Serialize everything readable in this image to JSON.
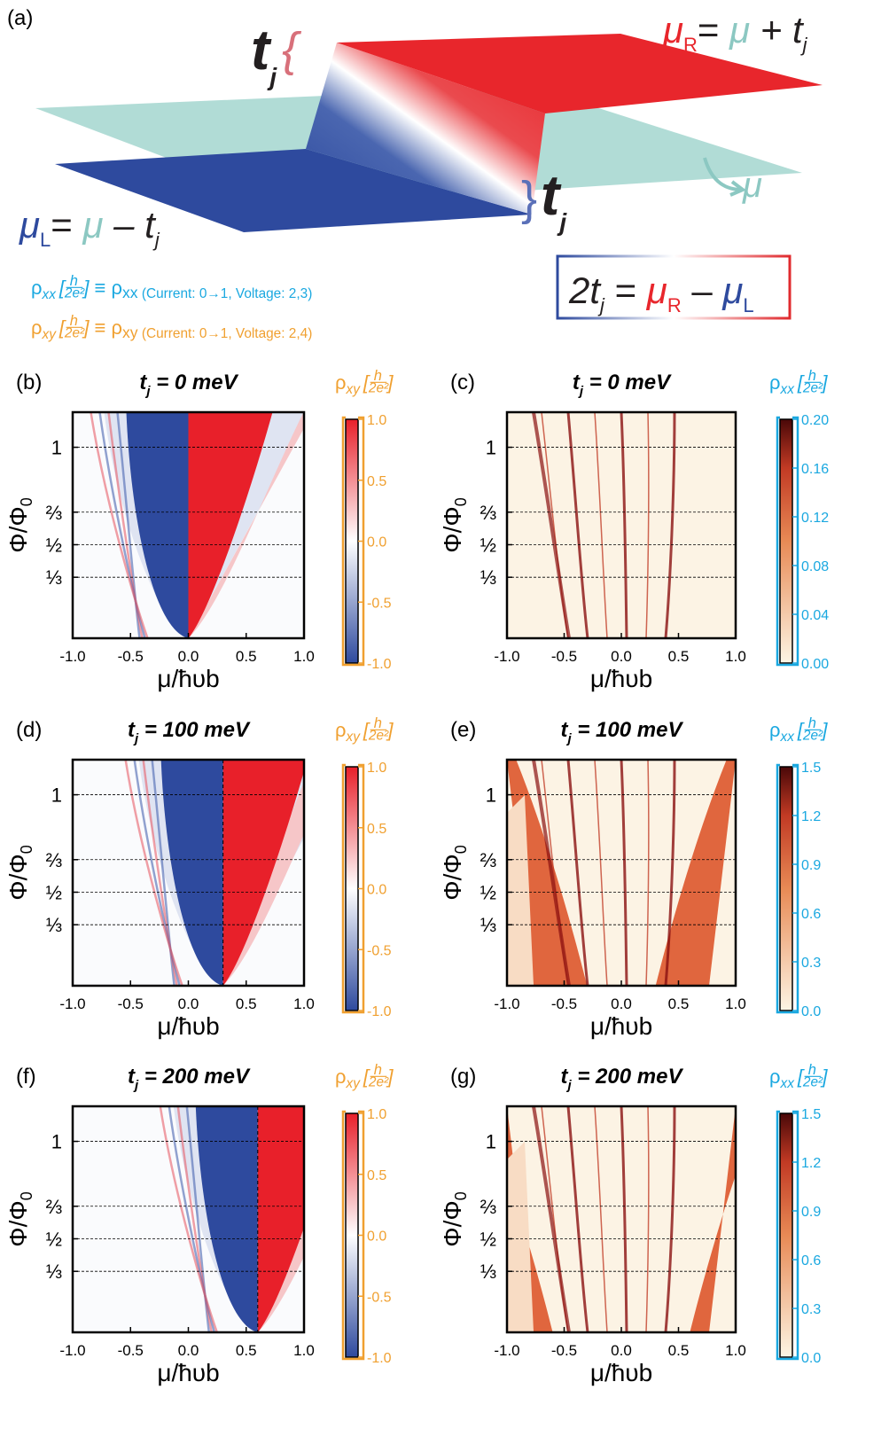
{
  "panel_a": {
    "label": "(a)",
    "tj_top": {
      "t": "t",
      "sub": "j",
      "brace": "{"
    },
    "mu_R_eq": [
      "μ",
      "R",
      "= ",
      "μ",
      " + t",
      "j"
    ],
    "mu_L_eq": [
      "μ",
      "L",
      "= ",
      "μ",
      " – t",
      "j"
    ],
    "tj_bottom": {
      "brace": "}",
      "t": "t",
      "sub": "j"
    },
    "mu_arrow_label": "μ",
    "box_eq": [
      "2t",
      "j",
      " = ",
      "μ",
      "R",
      " – ",
      "μ",
      "L"
    ],
    "rho_xx_def": {
      "rho": "ρ",
      "sub": "xx",
      "open": "[",
      "num": "h",
      "den": "2e²",
      "close": "]",
      "rest": "≡ ρ",
      "rest_sub": "xx",
      "note": " (Current: 0→1, Voltage: 2,3)"
    },
    "rho_xy_def": {
      "rho": "ρ",
      "sub": "xy",
      "open": "[",
      "num": "h",
      "den": "2e²",
      "close": "]",
      "rest": "≡ ρ",
      "rest_sub": "xy",
      "note": " (Current: 0→1, Voltage: 2,4)"
    }
  },
  "panels": [
    {
      "label": "(b)",
      "kind": "xy",
      "title": [
        "t",
        "j",
        " = 0 meV"
      ],
      "xlabel": "μ/ħυb",
      "ylabel": [
        "Φ/Φ",
        "0"
      ],
      "xlim": [
        -1,
        1
      ],
      "ylim": [
        0.02,
        1.18
      ],
      "xticks": [
        {
          "value": -1,
          "label": "-1.0"
        },
        {
          "value": -0.5,
          "label": "-0.5"
        },
        {
          "value": 0,
          "label": "0.0"
        },
        {
          "value": 0.5,
          "label": "0.5"
        },
        {
          "value": 1,
          "label": "1.0"
        }
      ],
      "yticks": [
        1,
        {
          "value": 0.667,
          "label": "⅔"
        },
        {
          "value": 0.5,
          "label": "½"
        },
        {
          "value": 0.333,
          "label": "⅓"
        }
      ],
      "colorbar": {
        "label": {
          "rho": "ρ",
          "sub": "xy",
          "open": "[",
          "num": "h",
          "den": "2e²",
          "close": "]"
        },
        "lim": [
          -1,
          1
        ],
        "ticks": [
          {
            "value": 1,
            "label": "1.0"
          },
          {
            "value": 0.5,
            "label": "0.5"
          },
          {
            "value": 0,
            "label": "0.0"
          },
          {
            "value": -0.5,
            "label": "-0.5"
          },
          {
            "value": -1,
            "label": "-1.0"
          }
        ]
      }
    },
    {
      "label": "(c)",
      "kind": "xx",
      "title": [
        "t",
        "j",
        " = 0 meV"
      ],
      "xlabel": "μ/ħυb",
      "ylabel": [
        "Φ/Φ",
        "0"
      ],
      "xlim": [
        -1,
        1
      ],
      "ylim": [
        0.02,
        1.18
      ],
      "xticks": [
        {
          "value": -1,
          "label": "-1.0"
        },
        {
          "value": -0.5,
          "label": "-0.5"
        },
        {
          "value": 0,
          "label": "0.0"
        },
        {
          "value": 0.5,
          "label": "0.5"
        },
        {
          "value": 1,
          "label": "1.0"
        }
      ],
      "yticks": [
        1,
        {
          "value": 0.667,
          "label": "⅔"
        },
        {
          "value": 0.5,
          "label": "½"
        },
        {
          "value": 0.333,
          "label": "⅓"
        }
      ],
      "colorbar": {
        "label": {
          "rho": "ρ",
          "sub": "xx",
          "open": "[",
          "num": "h",
          "den": "2e²",
          "close": "]"
        },
        "lim": [
          0,
          0.2
        ],
        "ticks": [
          {
            "value": 0.2,
            "label": "0.20"
          },
          0.16,
          0.12,
          0.08,
          0.04,
          {
            "value": 0,
            "label": "0.00"
          }
        ]
      }
    },
    {
      "label": "(d)",
      "kind": "xy",
      "title": [
        "t",
        "j",
        " = 100 meV"
      ],
      "xlabel": "μ/ħυb",
      "ylabel": [
        "Φ/Φ",
        "0"
      ],
      "xlim": [
        -1,
        1
      ],
      "ylim": [
        0.02,
        1.18
      ],
      "xticks": [
        {
          "value": -1,
          "label": "-1.0"
        },
        {
          "value": -0.5,
          "label": "-0.5"
        },
        {
          "value": 0,
          "label": "0.0"
        },
        {
          "value": 0.5,
          "label": "0.5"
        },
        {
          "value": 1,
          "label": "1.0"
        }
      ],
      "yticks": [
        1,
        {
          "value": 0.667,
          "label": "⅔"
        },
        {
          "value": 0.5,
          "label": "½"
        },
        {
          "value": 0.333,
          "label": "⅓"
        }
      ],
      "colorbar": {
        "label": {
          "rho": "ρ",
          "sub": "xy",
          "open": "[",
          "num": "h",
          "den": "2e²",
          "close": "]"
        },
        "lim": [
          -1,
          1
        ],
        "ticks": [
          {
            "value": 1,
            "label": "1.0"
          },
          {
            "value": 0.5,
            "label": "0.5"
          },
          {
            "value": 0,
            "label": "0.0"
          },
          {
            "value": -0.5,
            "label": "-0.5"
          },
          {
            "value": -1,
            "label": "-1.0"
          }
        ]
      }
    },
    {
      "label": "(e)",
      "kind": "xx",
      "title": [
        "t",
        "j",
        " = 100 meV"
      ],
      "xlabel": "μ/ħυb",
      "ylabel": [
        "Φ/Φ",
        "0"
      ],
      "xlim": [
        -1,
        1
      ],
      "ylim": [
        0.02,
        1.18
      ],
      "xticks": [
        {
          "value": -1,
          "label": "-1.0"
        },
        {
          "value": -0.5,
          "label": "-0.5"
        },
        {
          "value": 0,
          "label": "0.0"
        },
        {
          "value": 0.5,
          "label": "0.5"
        },
        {
          "value": 1,
          "label": "1.0"
        }
      ],
      "yticks": [
        1,
        {
          "value": 0.667,
          "label": "⅔"
        },
        {
          "value": 0.5,
          "label": "½"
        },
        {
          "value": 0.333,
          "label": "⅓"
        }
      ],
      "colorbar": {
        "label": {
          "rho": "ρ",
          "sub": "xx",
          "open": "[",
          "num": "h",
          "den": "2e²",
          "close": "]"
        },
        "lim": [
          0,
          1.5
        ],
        "ticks": [
          1.5,
          1.2,
          0.9,
          0.6,
          0.3,
          {
            "value": 0,
            "label": "0.0"
          }
        ]
      }
    },
    {
      "label": "(f)",
      "kind": "xy",
      "title": [
        "t",
        "j",
        " = 200 meV"
      ],
      "xlabel": "μ/ħυb",
      "ylabel": [
        "Φ/Φ",
        "0"
      ],
      "xlim": [
        -1,
        1
      ],
      "ylim": [
        0.02,
        1.18
      ],
      "xticks": [
        {
          "value": -1,
          "label": "-1.0"
        },
        {
          "value": -0.5,
          "label": "-0.5"
        },
        {
          "value": 0,
          "label": "0.0"
        },
        {
          "value": 0.5,
          "label": "0.5"
        },
        {
          "value": 1,
          "label": "1.0"
        }
      ],
      "yticks": [
        1,
        {
          "value": 0.667,
          "label": "⅔"
        },
        {
          "value": 0.5,
          "label": "½"
        },
        {
          "value": 0.333,
          "label": "⅓"
        }
      ],
      "colorbar": {
        "label": {
          "rho": "ρ",
          "sub": "xy",
          "open": "[",
          "num": "h",
          "den": "2e²",
          "close": "]"
        },
        "lim": [
          -1,
          1
        ],
        "ticks": [
          {
            "value": 1,
            "label": "1.0"
          },
          {
            "value": 0.5,
            "label": "0.5"
          },
          {
            "value": 0,
            "label": "0.0"
          },
          {
            "value": -0.5,
            "label": "-0.5"
          },
          {
            "value": -1,
            "label": "-1.0"
          }
        ]
      }
    },
    {
      "label": "(g)",
      "kind": "xx",
      "title": [
        "t",
        "j",
        " = 200 meV"
      ],
      "xlabel": "μ/ħυb",
      "ylabel": [
        "Φ/Φ",
        "0"
      ],
      "xlim": [
        -1,
        1
      ],
      "ylim": [
        0.02,
        1.18
      ],
      "xticks": [
        {
          "value": -1,
          "label": "-1.0"
        },
        {
          "value": -0.5,
          "label": "-0.5"
        },
        {
          "value": 0,
          "label": "0.0"
        },
        {
          "value": 0.5,
          "label": "0.5"
        },
        {
          "value": 1,
          "label": "1.0"
        }
      ],
      "yticks": [
        1,
        {
          "value": 0.667,
          "label": "⅔"
        },
        {
          "value": 0.5,
          "label": "½"
        },
        {
          "value": 0.333,
          "label": "⅓"
        }
      ],
      "colorbar": {
        "label": {
          "rho": "ρ",
          "sub": "xx",
          "open": "[",
          "num": "h",
          "den": "2e²",
          "close": "]"
        },
        "lim": [
          0,
          1.5
        ],
        "ticks": [
          1.5,
          1.2,
          0.9,
          0.6,
          0.3,
          {
            "value": 0,
            "label": "0.0"
          }
        ]
      }
    }
  ]
}
